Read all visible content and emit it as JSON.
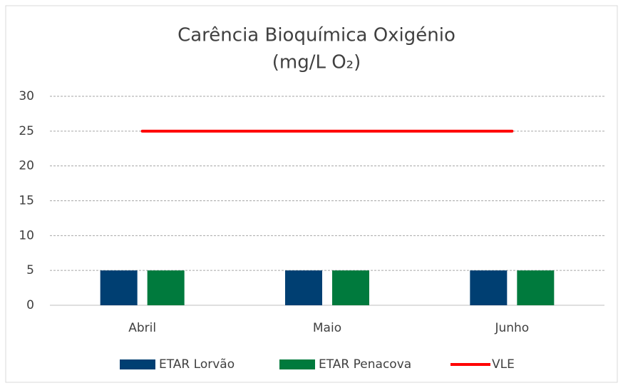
{
  "chart_data": {
    "type": "bar",
    "title": [
      "Carência Bioquímica Oxigénio",
      "(mg/L O₂)"
    ],
    "categories": [
      "Abril",
      "Maio",
      "Junho"
    ],
    "series": [
      {
        "name": "ETAR Lorvão",
        "color": "#003f72",
        "values": [
          5,
          5,
          5
        ]
      },
      {
        "name": "ETAR Penacova",
        "color": "#007a3d",
        "values": [
          5,
          5,
          5
        ]
      },
      {
        "name": "VLE",
        "color": "#ff0000",
        "type": "line",
        "values": [
          25,
          25,
          25
        ]
      }
    ],
    "ylim": [
      0,
      30
    ],
    "yticks": [
      0,
      5,
      10,
      15,
      20,
      25,
      30
    ],
    "grid": true,
    "legend": "bottom"
  }
}
